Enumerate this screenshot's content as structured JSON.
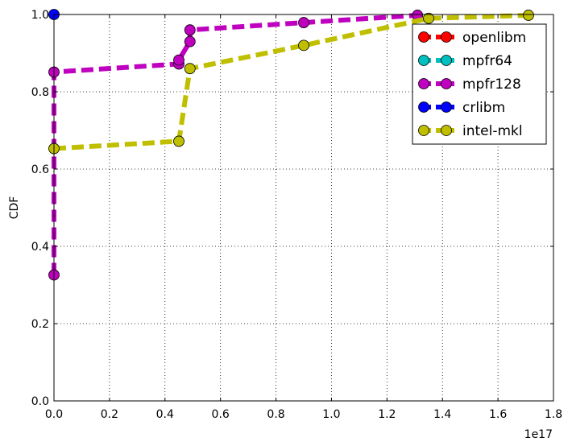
{
  "chart_data": {
    "type": "line",
    "ylabel": "CDF",
    "xlabel": "",
    "x_scale_label": "1e17",
    "xlim": [
      0,
      1.8
    ],
    "ylim": [
      0,
      1.0
    ],
    "xticks": [
      "0.0",
      "0.2",
      "0.4",
      "0.6",
      "0.8",
      "1.0",
      "1.2",
      "1.4",
      "1.6",
      "1.8"
    ],
    "yticks": [
      "0.0",
      "0.2",
      "0.4",
      "0.6",
      "0.8",
      "1.0"
    ],
    "grid": true,
    "legend_position": "top-right",
    "series": [
      {
        "name": "openlibm",
        "color": "#ff0000",
        "points": []
      },
      {
        "name": "mpfr64",
        "color": "#00bfbf",
        "points": []
      },
      {
        "name": "mpfr128",
        "color": "#bf00bf",
        "points": [
          [
            0,
            0.326
          ],
          [
            0,
            0.851
          ],
          [
            0.45,
            0.872
          ],
          [
            0.45,
            0.882
          ],
          [
            0.49,
            0.93
          ],
          [
            0.49,
            0.96
          ],
          [
            0.9,
            0.979
          ],
          [
            1.31,
            0.998
          ]
        ]
      },
      {
        "name": "crlibm",
        "color": "#0000ff",
        "points": [
          [
            0,
            1.0
          ]
        ]
      },
      {
        "name": "intel-mkl",
        "color": "#bfbf00",
        "points": [
          [
            0,
            0.653
          ],
          [
            0.45,
            0.672
          ],
          [
            0.49,
            0.86
          ],
          [
            0.9,
            0.92
          ],
          [
            1.35,
            0.99
          ],
          [
            1.71,
            0.998
          ]
        ]
      }
    ]
  }
}
